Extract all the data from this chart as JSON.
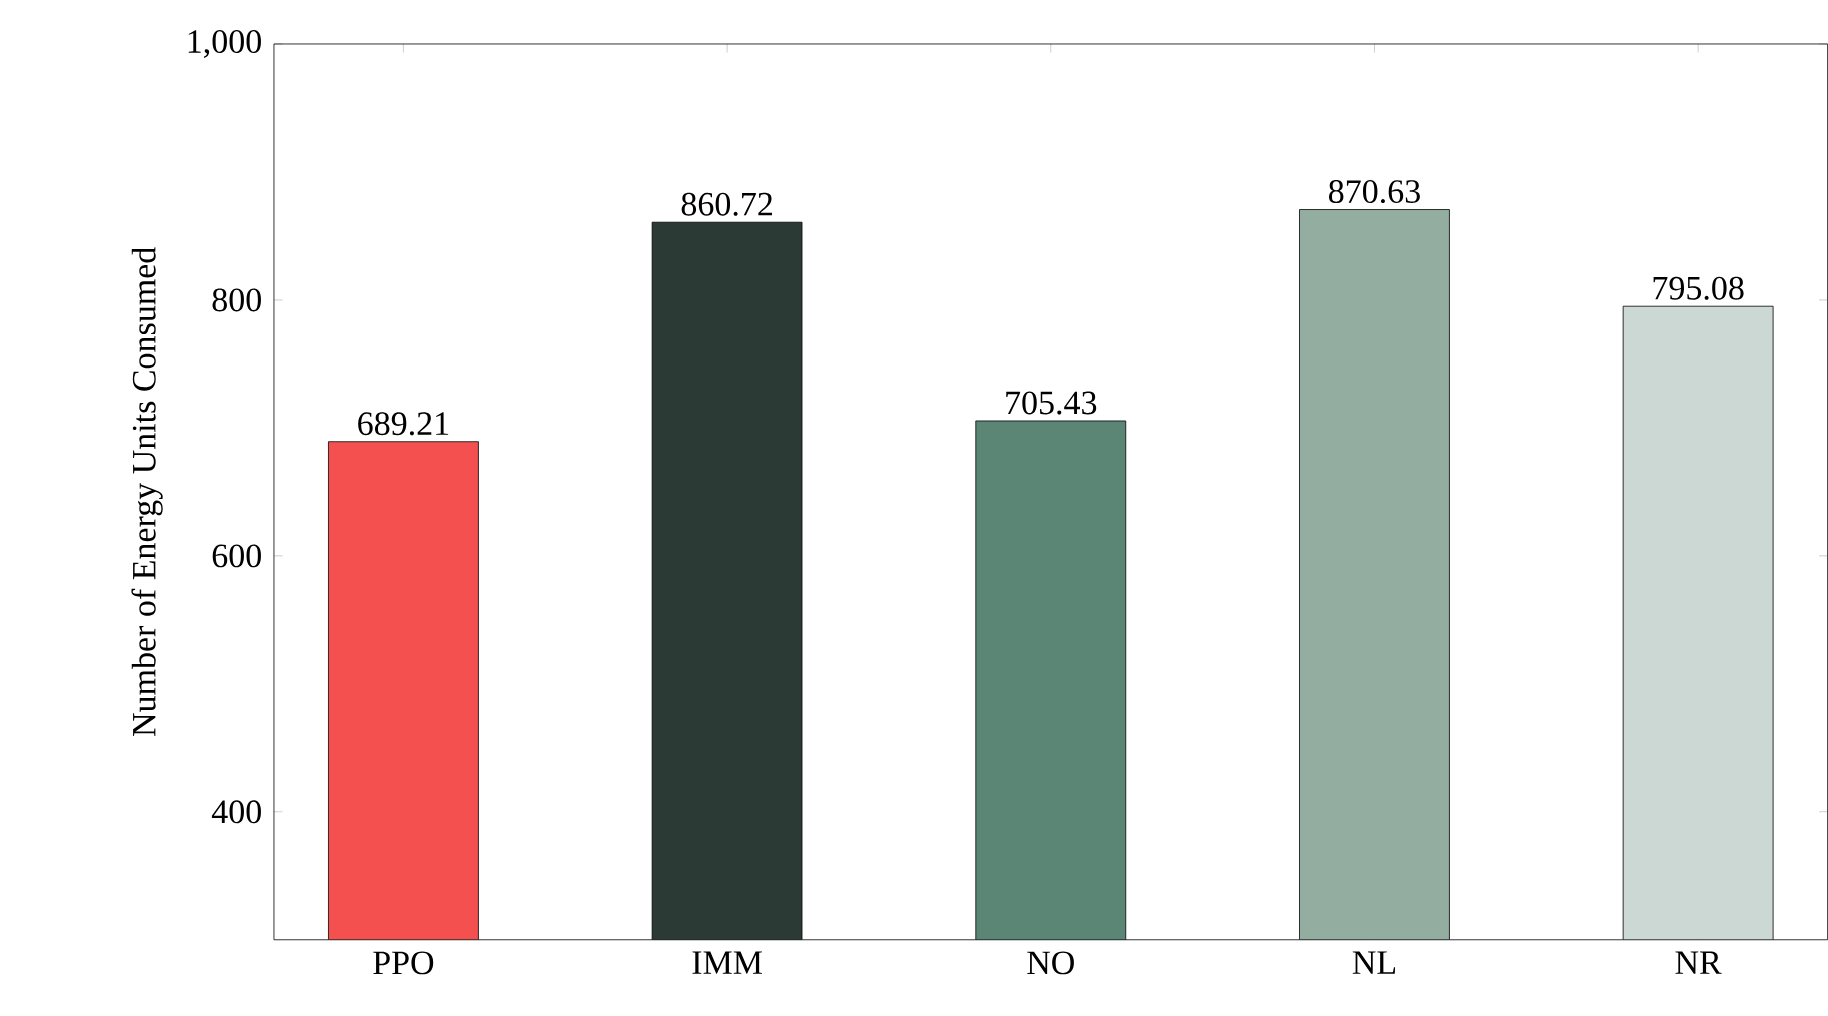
{
  "chart_data": {
    "type": "bar",
    "ylabel": "Number of Energy Units Consumed",
    "categories": [
      "PPO",
      "IMM",
      "NO",
      "NL",
      "NR"
    ],
    "values": [
      689.21,
      860.72,
      705.43,
      870.63,
      795.08
    ],
    "colors": [
      "#f45050",
      "#2b3a35",
      "#5b8575",
      "#93ada0",
      "#cbd8d3"
    ],
    "ylim": [
      300,
      1000
    ],
    "yticks": [
      400,
      600,
      800,
      {
        "value": 1000,
        "label": "1,000"
      }
    ],
    "data_labels": true
  }
}
